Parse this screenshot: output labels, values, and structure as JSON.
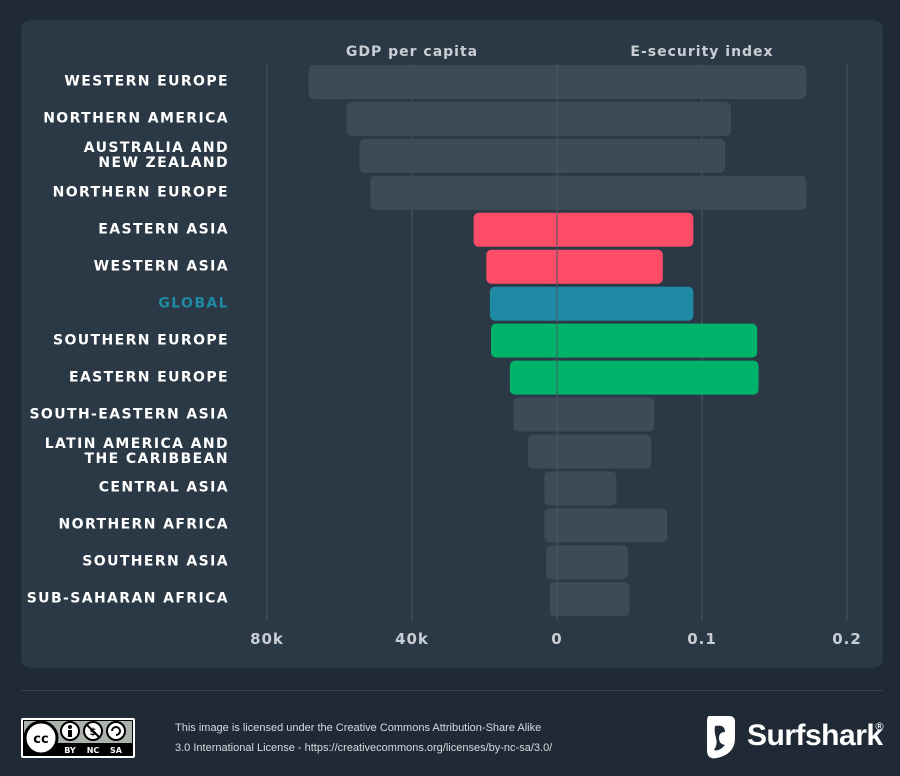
{
  "chart_data": {
    "type": "bar",
    "layout": "butterfly",
    "left_header": "GDP per capita",
    "right_header": "E-security index",
    "left_ticks": [
      "80k",
      "40k",
      "0"
    ],
    "right_ticks": [
      "0.1",
      "0.2"
    ],
    "left_axis_max": 80000,
    "right_axis_max": 0.2,
    "grid": true,
    "categories": [
      {
        "label": "WESTERN EUROPE",
        "gdp": 68500,
        "esec": 0.172,
        "group": "other"
      },
      {
        "label": "NORTHERN AMERICA",
        "gdp": 58000,
        "esec": 0.12,
        "group": "other"
      },
      {
        "label": "AUSTRALIA AND\nNEW ZEALAND",
        "gdp": 54500,
        "esec": 0.116,
        "group": "other"
      },
      {
        "label": "NORTHERN EUROPE",
        "gdp": 51500,
        "esec": 0.172,
        "group": "other"
      },
      {
        "label": "EASTERN ASIA",
        "gdp": 23000,
        "esec": 0.094,
        "group": "low"
      },
      {
        "label": "WESTERN ASIA",
        "gdp": 19500,
        "esec": 0.073,
        "group": "low"
      },
      {
        "label": "GLOBAL",
        "gdp": 18500,
        "esec": 0.094,
        "group": "global"
      },
      {
        "label": "SOUTHERN EUROPE",
        "gdp": 18200,
        "esec": 0.138,
        "group": "high"
      },
      {
        "label": "EASTERN EUROPE",
        "gdp": 13000,
        "esec": 0.139,
        "group": "high"
      },
      {
        "label": "SOUTH-EASTERN ASIA",
        "gdp": 12000,
        "esec": 0.067,
        "group": "other"
      },
      {
        "label": "LATIN AMERICA AND\nTHE CARIBBEAN",
        "gdp": 8000,
        "esec": 0.065,
        "group": "other"
      },
      {
        "label": "CENTRAL ASIA",
        "gdp": 3500,
        "esec": 0.041,
        "group": "other"
      },
      {
        "label": "NORTHERN AFRICA",
        "gdp": 3500,
        "esec": 0.076,
        "group": "other"
      },
      {
        "label": "SOUTHERN ASIA",
        "gdp": 3000,
        "esec": 0.049,
        "group": "other"
      },
      {
        "label": "SUB-SAHARAN AFRICA",
        "gdp": 2000,
        "esec": 0.05,
        "group": "other"
      }
    ],
    "colors": {
      "other": "#3d4a57",
      "low": "#fd4c67",
      "global": "#1f8aa3",
      "high": "#00b36b",
      "grid": "#4b5764",
      "tick": "#c9ced4",
      "header": "#c9ced4"
    }
  },
  "footer": {
    "license_line1": "This image is licensed under the Creative Commons Attribution-Share Alike",
    "license_line2": "3.0 International License - https://creativecommons.org/licenses/by-nc-sa/3.0/",
    "license_badge": [
      "BY",
      "NC",
      "SA"
    ],
    "license_icon": "creative-commons-icon",
    "brand_name": "Surfshark",
    "brand_mark": "®",
    "brand_icon": "surfshark-logo-icon"
  }
}
